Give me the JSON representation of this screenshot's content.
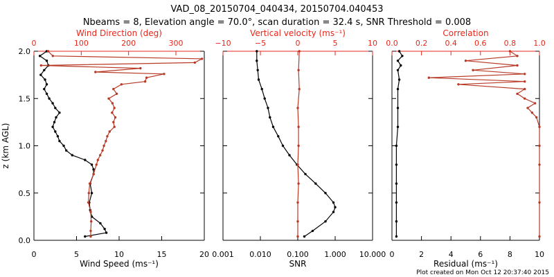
{
  "title_line1": "VAD_08_20150704_040434, 20150704.040453",
  "title_line2": "Nbeams = 8, Elevation angle = 70.0°, scan duration = 32.4 s, SNR Threshold = 0.008",
  "footer": "Plot created on Mon Oct 12 20:37:40 2015",
  "colors": {
    "primary": "#000000",
    "secondary": "#e8261b",
    "secondary_line": "#b83a26"
  },
  "chart_data": [
    {
      "type": "line",
      "panel": "left",
      "ylabel": "z (km AGL)",
      "ylim": [
        0,
        2.0
      ],
      "yticks": [
        "0.0",
        "0.5",
        "1.0",
        "1.5",
        "2.0"
      ],
      "bottom_axis": {
        "label": "Wind Speed (ms⁻¹)",
        "range": [
          0,
          20
        ],
        "ticks": [
          "0",
          "5",
          "10",
          "15",
          "20"
        ]
      },
      "top_axis": {
        "label": "Wind Direction (deg)",
        "range": [
          0,
          360
        ],
        "ticks": [
          "0",
          "100",
          "200",
          "300"
        ]
      },
      "series": [
        {
          "name": "Wind Speed",
          "axis": "bottom",
          "color": "#000000",
          "z": [
            0.04,
            0.08,
            0.12,
            0.18,
            0.25,
            0.32,
            0.4,
            0.5,
            0.6,
            0.7,
            0.75,
            0.8,
            0.85,
            0.9,
            0.95,
            1.0,
            1.05,
            1.1,
            1.15,
            1.2,
            1.25,
            1.3,
            1.35,
            1.4,
            1.45,
            1.5,
            1.55,
            1.6,
            1.65,
            1.7,
            1.75,
            1.8,
            1.85,
            1.9,
            1.95,
            2.0
          ],
          "values": [
            6.0,
            8.5,
            8.3,
            7.8,
            6.8,
            6.6,
            6.5,
            6.8,
            6.6,
            7.0,
            7.0,
            6.8,
            6.0,
            4.5,
            3.8,
            3.5,
            3.0,
            2.8,
            2.5,
            2.2,
            2.4,
            2.6,
            3.0,
            2.5,
            2.2,
            1.8,
            1.5,
            1.2,
            1.5,
            1.3,
            0.8,
            1.2,
            1.7,
            1.5,
            0.7,
            1.5
          ]
        },
        {
          "name": "Wind Direction",
          "axis": "top",
          "color": "#b83a26",
          "z": [
            0.04,
            0.1,
            0.2,
            0.3,
            0.4,
            0.5,
            0.6,
            0.7,
            0.8,
            0.85,
            0.9,
            0.95,
            1.0,
            1.05,
            1.1,
            1.15,
            1.2,
            1.25,
            1.3,
            1.35,
            1.4,
            1.45,
            1.5,
            1.55,
            1.6,
            1.65,
            1.68,
            1.72,
            1.76,
            1.78,
            1.82,
            1.85,
            1.88,
            1.92,
            1.95,
            2.0
          ],
          "values": [
            120,
            120,
            121,
            120,
            115,
            116,
            118,
            126,
            132,
            135,
            140,
            145,
            148,
            152,
            155,
            160,
            170,
            168,
            172,
            165,
            170,
            166,
            158,
            175,
            168,
            185,
            235,
            238,
            275,
            130,
            225,
            15,
            340,
            355,
            40,
            30
          ]
        }
      ]
    },
    {
      "type": "line",
      "panel": "middle",
      "ylim": [
        0,
        2.0
      ],
      "bottom_axis": {
        "label": "SNR",
        "scale": "log",
        "range": [
          0.001,
          10
        ],
        "ticks": [
          "0.001",
          "0.010",
          "0.100",
          "1.000",
          "10.000"
        ]
      },
      "top_axis": {
        "label": "Vertical velocity (ms⁻¹)",
        "range": [
          -10,
          10
        ],
        "ticks": [
          "−10",
          "−5",
          "0",
          "5",
          "10"
        ]
      },
      "series": [
        {
          "name": "SNR",
          "axis": "bottom",
          "color": "#000000",
          "z": [
            0.04,
            0.1,
            0.2,
            0.3,
            0.35,
            0.4,
            0.5,
            0.6,
            0.7,
            0.8,
            0.9,
            1.0,
            1.1,
            1.2,
            1.3,
            1.4,
            1.5,
            1.6,
            1.7,
            1.8,
            1.9,
            2.0
          ],
          "values": [
            0.15,
            0.25,
            0.55,
            0.9,
            1.0,
            0.9,
            0.55,
            0.3,
            0.16,
            0.095,
            0.06,
            0.04,
            0.03,
            0.022,
            0.018,
            0.016,
            0.013,
            0.011,
            0.009,
            0.0085,
            0.008,
            0.008
          ]
        },
        {
          "name": "Vertical velocity",
          "axis": "top",
          "color": "#b83a26",
          "z": [
            0.04,
            0.2,
            0.4,
            0.6,
            0.8,
            1.0,
            1.2,
            1.4,
            1.6,
            1.8,
            2.0
          ],
          "values": [
            0.0,
            0.0,
            0.0,
            0.1,
            0.0,
            0.1,
            0.1,
            0.0,
            0.2,
            0.1,
            0.2
          ]
        }
      ]
    },
    {
      "type": "line",
      "panel": "right",
      "ylim": [
        0,
        2.0
      ],
      "bottom_axis": {
        "label": "Residual (ms⁻¹)",
        "range": [
          0,
          10
        ],
        "ticks": [
          "0",
          "2",
          "4",
          "6",
          "8",
          "10"
        ]
      },
      "top_axis": {
        "label": "Correlation",
        "range": [
          0,
          1.0
        ],
        "ticks": [
          "0.0",
          "0.2",
          "0.4",
          "0.6",
          "0.8",
          "1.0"
        ]
      },
      "series": [
        {
          "name": "Residual",
          "axis": "bottom",
          "color": "#000000",
          "z": [
            0.04,
            0.2,
            0.4,
            0.6,
            0.8,
            1.0,
            1.2,
            1.4,
            1.6,
            1.7,
            1.8,
            1.85,
            1.9,
            1.95,
            2.0
          ],
          "values": [
            0.3,
            0.3,
            0.3,
            0.3,
            0.3,
            0.3,
            0.4,
            0.4,
            0.4,
            0.5,
            0.4,
            0.6,
            0.4,
            0.7,
            0.5
          ]
        },
        {
          "name": "Correlation",
          "axis": "top",
          "color": "#b83a26",
          "z": [
            0.04,
            0.4,
            0.8,
            1.0,
            1.2,
            1.3,
            1.35,
            1.4,
            1.45,
            1.5,
            1.55,
            1.6,
            1.65,
            1.68,
            1.72,
            1.76,
            1.8,
            1.85,
            1.9,
            1.95,
            2.0
          ],
          "values": [
            1.0,
            1.0,
            1.0,
            1.0,
            1.0,
            0.98,
            0.95,
            0.92,
            0.97,
            0.9,
            0.85,
            0.9,
            0.45,
            0.9,
            0.25,
            0.9,
            0.55,
            0.85,
            0.5,
            0.85,
            0.8
          ]
        }
      ]
    }
  ]
}
